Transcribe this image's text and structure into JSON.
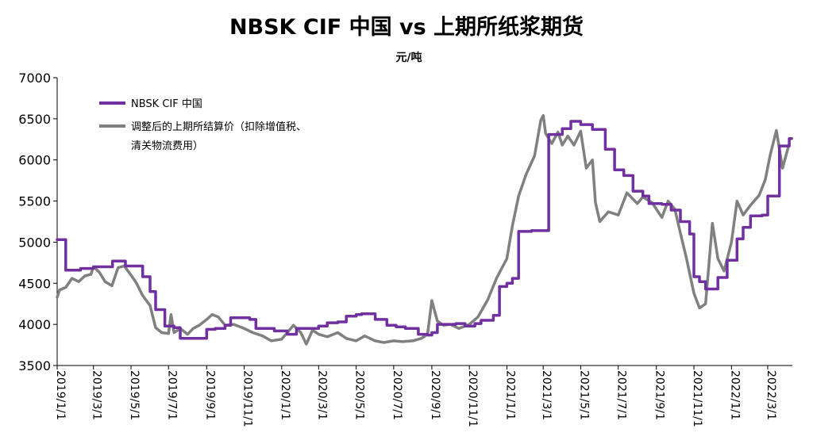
{
  "chart_data": {
    "type": "line",
    "title": "NBSK CIF 中国 vs 上期所纸浆期货",
    "unit": "元/吨",
    "ylim": [
      3500,
      7000
    ],
    "yticks": [
      3500,
      4000,
      4500,
      5000,
      5500,
      6000,
      6500,
      7000
    ],
    "xlim": [
      "2019/1/1",
      "2022/4/10"
    ],
    "xticks": [
      "2019/1/1",
      "2019/3/1",
      "2019/5/1",
      "2019/7/1",
      "2019/9/1",
      "2019/11/1",
      "2020/1/1",
      "2020/3/1",
      "2020/5/1",
      "2020/7/1",
      "2020/9/1",
      "2020/11/1",
      "2021/1/1",
      "2021/3/1",
      "2021/5/1",
      "2021/7/1",
      "2021/9/1",
      "2021/11/1",
      "2022/1/1",
      "2022/3/1"
    ],
    "legend_position": "top-left",
    "grid": false,
    "series": [
      {
        "name": "NBSK CIF 中国",
        "color": "#7030A0",
        "step": true,
        "points": [
          [
            "2019/1/1",
            5030
          ],
          [
            "2019/1/15",
            4660
          ],
          [
            "2019/2/1",
            4660
          ],
          [
            "2019/2/8",
            4680
          ],
          [
            "2019/3/1",
            4700
          ],
          [
            "2019/4/1",
            4770
          ],
          [
            "2019/4/22",
            4710
          ],
          [
            "2019/5/10",
            4710
          ],
          [
            "2019/5/20",
            4580
          ],
          [
            "2019/6/1",
            4400
          ],
          [
            "2019/6/10",
            4180
          ],
          [
            "2019/6/25",
            3980
          ],
          [
            "2019/7/10",
            3960
          ],
          [
            "2019/7/20",
            3830
          ],
          [
            "2019/8/10",
            3830
          ],
          [
            "2019/8/25",
            3830
          ],
          [
            "2019/9/1",
            3940
          ],
          [
            "2019/9/15",
            3950
          ],
          [
            "2019/10/1",
            3990
          ],
          [
            "2019/10/10",
            4080
          ],
          [
            "2019/11/10",
            4060
          ],
          [
            "2019/11/20",
            3950
          ],
          [
            "2019/12/20",
            3920
          ],
          [
            "2020/1/10",
            3880
          ],
          [
            "2020/1/25",
            3950
          ],
          [
            "2020/2/10",
            3950
          ],
          [
            "2020/3/1",
            3980
          ],
          [
            "2020/3/15",
            4020
          ],
          [
            "2020/4/1",
            4030
          ],
          [
            "2020/4/15",
            4100
          ],
          [
            "2020/5/1",
            4120
          ],
          [
            "2020/5/10",
            4130
          ],
          [
            "2020/6/1",
            4060
          ],
          [
            "2020/6/20",
            3990
          ],
          [
            "2020/7/5",
            3970
          ],
          [
            "2020/7/20",
            3950
          ],
          [
            "2020/8/10",
            3880
          ],
          [
            "2020/8/25",
            3870
          ],
          [
            "2020/9/1",
            3900
          ],
          [
            "2020/9/10",
            4000
          ],
          [
            "2020/10/10",
            4010
          ],
          [
            "2020/10/25",
            3980
          ],
          [
            "2020/11/10",
            4010
          ],
          [
            "2020/11/20",
            4050
          ],
          [
            "2020/12/10",
            4110
          ],
          [
            "2020/12/20",
            4460
          ],
          [
            "2021/1/1",
            4500
          ],
          [
            "2021/1/10",
            4560
          ],
          [
            "2021/1/20",
            5130
          ],
          [
            "2021/2/10",
            5140
          ],
          [
            "2021/3/1",
            5140
          ],
          [
            "2021/3/10",
            6310
          ],
          [
            "2021/4/1",
            6380
          ],
          [
            "2021/4/15",
            6470
          ],
          [
            "2021/5/1",
            6430
          ],
          [
            "2021/5/20",
            6370
          ],
          [
            "2021/6/10",
            6130
          ],
          [
            "2021/6/25",
            5880
          ],
          [
            "2021/7/10",
            5810
          ],
          [
            "2021/7/25",
            5620
          ],
          [
            "2021/8/10",
            5560
          ],
          [
            "2021/8/20",
            5470
          ],
          [
            "2021/9/10",
            5460
          ],
          [
            "2021/9/25",
            5390
          ],
          [
            "2021/10/10",
            5250
          ],
          [
            "2021/10/25",
            5100
          ],
          [
            "2021/11/1",
            4580
          ],
          [
            "2021/11/10",
            4520
          ],
          [
            "2021/11/20",
            4430
          ],
          [
            "2021/12/10",
            4570
          ],
          [
            "2021/12/25",
            4780
          ],
          [
            "2022/1/10",
            5040
          ],
          [
            "2022/1/20",
            5180
          ],
          [
            "2022/2/1",
            5320
          ],
          [
            "2022/2/20",
            5330
          ],
          [
            "2022/3/1",
            5560
          ],
          [
            "2022/3/20",
            6170
          ],
          [
            "2022/4/5",
            6260
          ]
        ]
      },
      {
        "name": "调整后的上期所结算价（扣除增值税、清关物流费用）",
        "color": "#808080",
        "step": false,
        "points": [
          [
            "2019/1/1",
            4330
          ],
          [
            "2019/1/5",
            4420
          ],
          [
            "2019/1/15",
            4450
          ],
          [
            "2019/1/25",
            4560
          ],
          [
            "2019/2/5",
            4520
          ],
          [
            "2019/2/15",
            4590
          ],
          [
            "2019/2/25",
            4610
          ],
          [
            "2019/3/1",
            4700
          ],
          [
            "2019/3/10",
            4640
          ],
          [
            "2019/3/20",
            4520
          ],
          [
            "2019/3/31",
            4470
          ],
          [
            "2019/4/10",
            4690
          ],
          [
            "2019/4/20",
            4710
          ],
          [
            "2019/5/1",
            4600
          ],
          [
            "2019/5/10",
            4500
          ],
          [
            "2019/5/20",
            4350
          ],
          [
            "2019/6/1",
            4230
          ],
          [
            "2019/6/10",
            3960
          ],
          [
            "2019/6/20",
            3900
          ],
          [
            "2019/7/1",
            3890
          ],
          [
            "2019/7/5",
            4120
          ],
          [
            "2019/7/10",
            3900
          ],
          [
            "2019/7/20",
            3950
          ],
          [
            "2019/8/1",
            3880
          ],
          [
            "2019/8/10",
            3950
          ],
          [
            "2019/8/20",
            3990
          ],
          [
            "2019/9/1",
            4060
          ],
          [
            "2019/9/10",
            4120
          ],
          [
            "2019/9/20",
            4090
          ],
          [
            "2019/10/1",
            3990
          ],
          [
            "2019/10/15",
            4000
          ],
          [
            "2019/11/1",
            3950
          ],
          [
            "2019/11/15",
            3900
          ],
          [
            "2019/12/1",
            3860
          ],
          [
            "2019/12/15",
            3800
          ],
          [
            "2020/1/1",
            3820
          ],
          [
            "2020/1/10",
            3900
          ],
          [
            "2020/1/20",
            3990
          ],
          [
            "2020/2/1",
            3900
          ],
          [
            "2020/2/10",
            3760
          ],
          [
            "2020/2/20",
            3930
          ],
          [
            "2020/3/1",
            3880
          ],
          [
            "2020/3/15",
            3850
          ],
          [
            "2020/4/1",
            3900
          ],
          [
            "2020/4/15",
            3830
          ],
          [
            "2020/5/1",
            3800
          ],
          [
            "2020/5/15",
            3860
          ],
          [
            "2020/6/1",
            3800
          ],
          [
            "2020/6/15",
            3780
          ],
          [
            "2020/7/1",
            3800
          ],
          [
            "2020/7/15",
            3790
          ],
          [
            "2020/8/1",
            3800
          ],
          [
            "2020/8/15",
            3830
          ],
          [
            "2020/8/25",
            3880
          ],
          [
            "2020/9/1",
            4290
          ],
          [
            "2020/9/10",
            4040
          ],
          [
            "2020/9/20",
            3990
          ],
          [
            "2020/10/1",
            4000
          ],
          [
            "2020/10/15",
            3950
          ],
          [
            "2020/11/1",
            4000
          ],
          [
            "2020/11/15",
            4090
          ],
          [
            "2020/12/1",
            4300
          ],
          [
            "2020/12/15",
            4560
          ],
          [
            "2021/1/1",
            4800
          ],
          [
            "2021/1/10",
            5200
          ],
          [
            "2021/1/20",
            5560
          ],
          [
            "2021/2/1",
            5820
          ],
          [
            "2021/2/15",
            6050
          ],
          [
            "2021/2/25",
            6480
          ],
          [
            "2021/3/1",
            6540
          ],
          [
            "2021/3/5",
            6320
          ],
          [
            "2021/3/15",
            6200
          ],
          [
            "2021/3/25",
            6340
          ],
          [
            "2021/4/1",
            6180
          ],
          [
            "2021/4/10",
            6290
          ],
          [
            "2021/4/20",
            6180
          ],
          [
            "2021/5/1",
            6350
          ],
          [
            "2021/5/10",
            5900
          ],
          [
            "2021/5/20",
            6000
          ],
          [
            "2021/5/25",
            5480
          ],
          [
            "2021/6/1",
            5250
          ],
          [
            "2021/6/15",
            5370
          ],
          [
            "2021/7/1",
            5330
          ],
          [
            "2021/7/15",
            5600
          ],
          [
            "2021/8/1",
            5470
          ],
          [
            "2021/8/10",
            5550
          ],
          [
            "2021/8/25",
            5480
          ],
          [
            "2021/9/10",
            5300
          ],
          [
            "2021/9/20",
            5500
          ],
          [
            "2021/10/1",
            5400
          ],
          [
            "2021/10/10",
            5110
          ],
          [
            "2021/10/20",
            4800
          ],
          [
            "2021/11/1",
            4380
          ],
          [
            "2021/11/10",
            4200
          ],
          [
            "2021/11/20",
            4250
          ],
          [
            "2021/12/1",
            5230
          ],
          [
            "2021/12/10",
            4800
          ],
          [
            "2021/12/20",
            4650
          ],
          [
            "2022/1/1",
            5000
          ],
          [
            "2022/1/10",
            5500
          ],
          [
            "2022/1/20",
            5330
          ],
          [
            "2022/2/1",
            5450
          ],
          [
            "2022/2/15",
            5570
          ],
          [
            "2022/2/25",
            5760
          ],
          [
            "2022/3/5",
            6060
          ],
          [
            "2022/3/15",
            6360
          ],
          [
            "2022/3/25",
            5900
          ],
          [
            "2022/4/5",
            6200
          ]
        ]
      }
    ]
  },
  "legend": {
    "series1_label": "NBSK CIF 中国",
    "series2_label_line1": "调整后的上期所结算价（扣除增值税、",
    "series2_label_line2": "清关物流费用）"
  }
}
